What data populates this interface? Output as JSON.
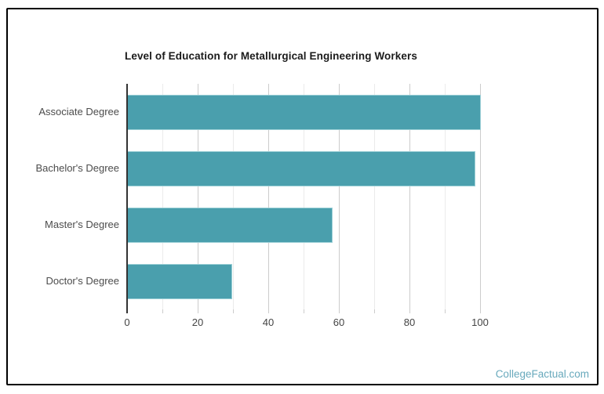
{
  "card": {
    "watermark": "CollegeFactual.com"
  },
  "chart_data": {
    "type": "bar",
    "orientation": "horizontal",
    "title": "Level of Education for Metallurgical Engineering Workers",
    "categories": [
      "Associate Degree",
      "Bachelor's Degree",
      "Master's Degree",
      "Doctor's Degree"
    ],
    "values": [
      100,
      98.5,
      58,
      29.5
    ],
    "xlabel": "",
    "ylabel": "",
    "xlim": [
      0,
      100
    ],
    "xticks": [
      0,
      20,
      40,
      60,
      80,
      100
    ],
    "minor_tick_step": 10,
    "grid": true,
    "legend": "none",
    "colors": {
      "bar": "#4a9fad",
      "bar_edge": "#9bcfd6",
      "axis": "#333333",
      "grid_major": "#cccccc",
      "grid_minor": "#ebebeb",
      "tick_label": "#444444",
      "category_label": "#4c4c4c",
      "title": "#1b1b1b",
      "watermark": "#68a9bc",
      "card_border": "#000000"
    }
  }
}
